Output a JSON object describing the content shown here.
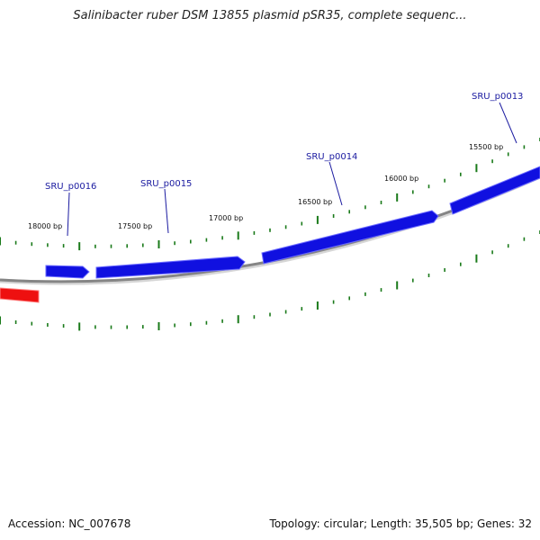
{
  "title": "Salinibacter ruber DSM 13855 plasmid pSR35, complete sequenc...",
  "footer": {
    "accession": "Accession: NC_007678",
    "summary": "Topology: circular; Length: 35,505 bp; Genes: 32"
  },
  "colors": {
    "forward_gene": "#1010e0",
    "reverse_gene": "#ee1010",
    "backbone": "#808080",
    "ticks": "#1a7a1a",
    "label_line": "#1a1aa0"
  },
  "tick_labels": [
    "15500 bp",
    "16000 bp",
    "16500 bp",
    "17000 bp",
    "17500 bp",
    "18000 bp"
  ],
  "gene_labels": [
    "SRU_p0013",
    "SRU_p0014",
    "SRU_p0015",
    "SRU_p0016"
  ]
}
